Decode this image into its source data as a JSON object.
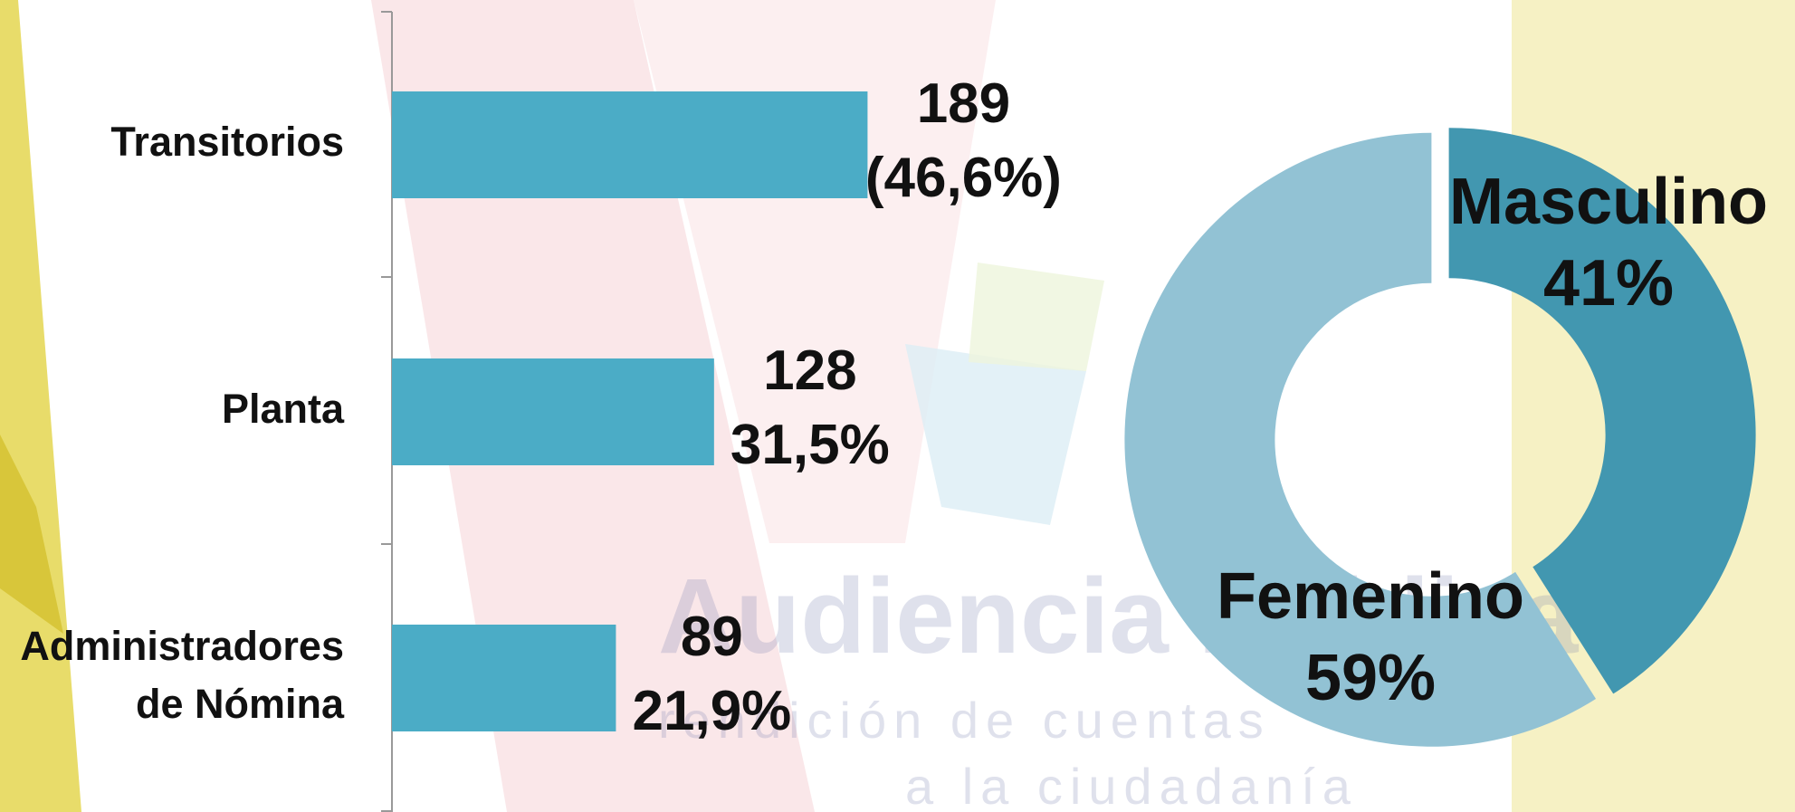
{
  "chart_data": [
    {
      "type": "barh",
      "categories": [
        "Transitorios",
        "Planta",
        "Administradores\nde Nómina"
      ],
      "values": [
        189,
        128,
        89
      ],
      "value_labels": [
        "189\n(46,6%)",
        "128\n31,5%",
        "89\n21,9%"
      ],
      "color": "#4bacc6"
    },
    {
      "type": "donut",
      "categories": [
        "Masculino",
        "Femenino"
      ],
      "values": [
        41,
        59
      ],
      "value_labels": [
        "41%",
        "59%"
      ],
      "colors": [
        "#4297b0",
        "#92c2d4"
      ]
    }
  ],
  "watermark": {
    "lines": [
      "Audiencia Pública",
      "rendición de cuentas",
      "a la ciudadanía"
    ]
  }
}
